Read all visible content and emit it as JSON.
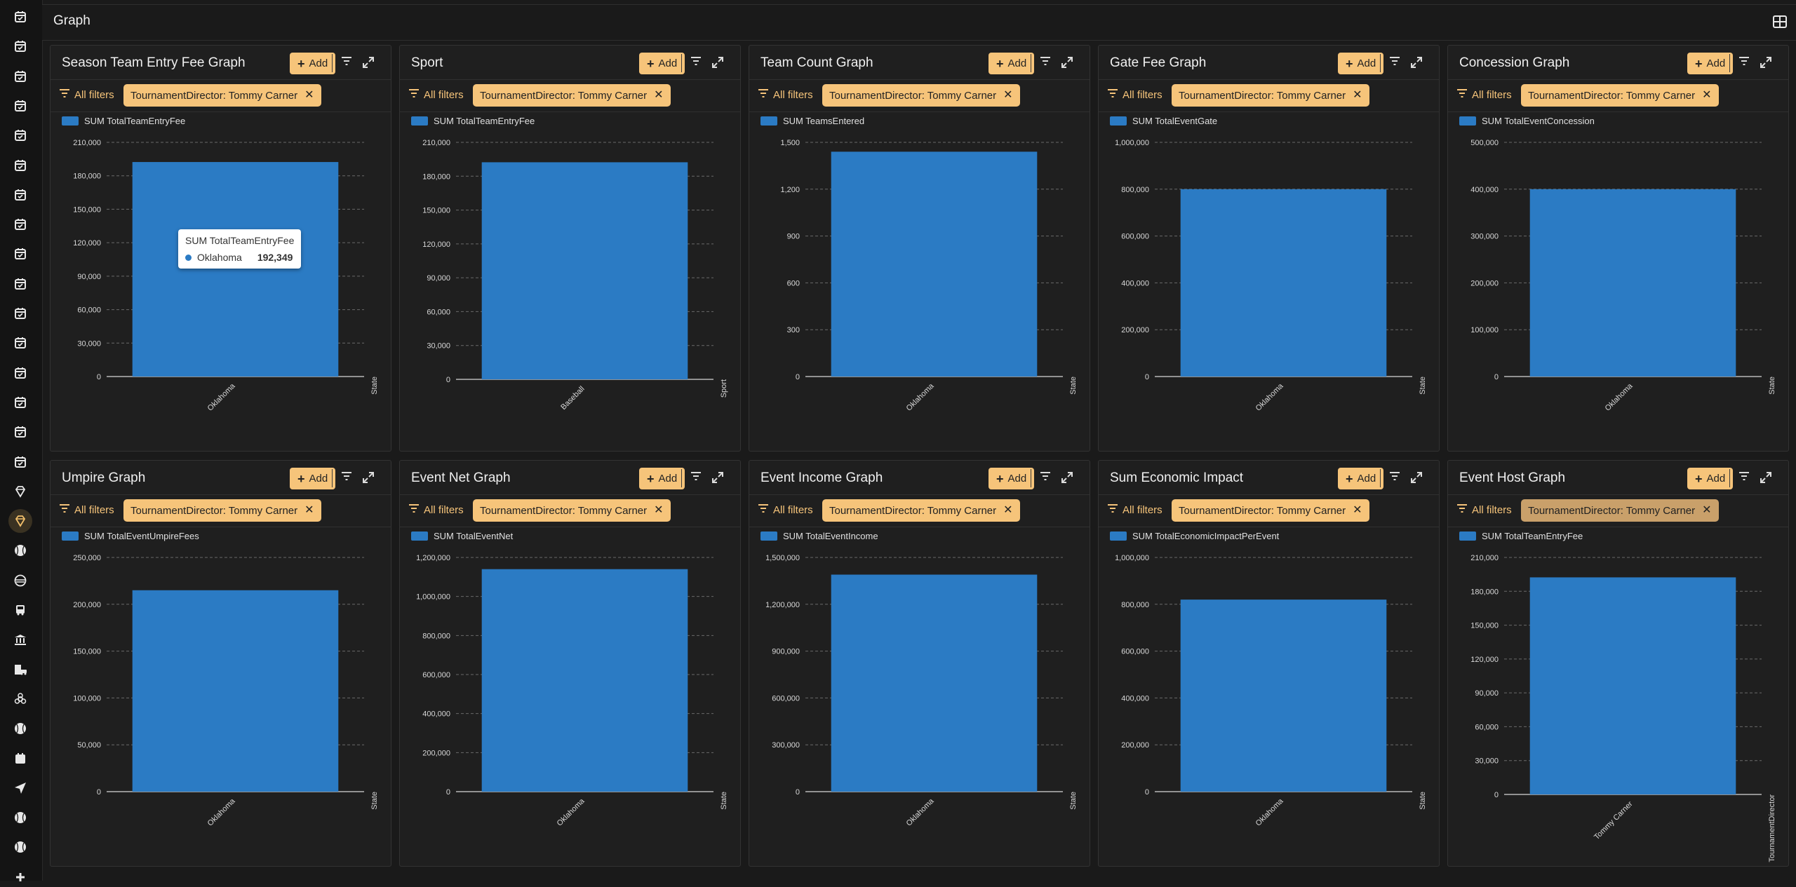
{
  "page": {
    "title": "Graph"
  },
  "colors": {
    "bar": "#2b7bc4",
    "accent": "#f6c47a",
    "background": "#1a1a1a",
    "panel": "#1f1f1f"
  },
  "sidebar": {
    "icons": [
      "calendar-check-icon",
      "calendar-check-icon",
      "calendar-check-icon",
      "calendar-check-icon",
      "calendar-check-icon",
      "calendar-check-icon",
      "calendar-check-icon",
      "calendar-check-icon",
      "calendar-check-icon",
      "calendar-check-icon",
      "calendar-check-icon",
      "calendar-check-icon",
      "calendar-check-icon",
      "calendar-check-icon",
      "calendar-check-icon",
      "calendar-check-icon",
      "diamond-icon",
      "diamond-icon",
      "baseball-icon",
      "mask-icon",
      "bus-icon",
      "bank-icon",
      "building-car-icon",
      "biohazard-icon",
      "baseball-icon",
      "calendar-icon",
      "send-icon",
      "baseball-icon",
      "baseball-icon",
      "plus-icon"
    ],
    "active_index": 17
  },
  "common": {
    "add_label": "Add",
    "all_filters_label": "All filters"
  },
  "panels": [
    {
      "title": "Season Team Entry Fee Graph",
      "filter_chip": "TournamentDirector: Tommy Carner",
      "chart_data": {
        "type": "bar",
        "legend": "SUM TotalTeamEntryFee",
        "categories": [
          "Oklahoma"
        ],
        "values": [
          192349
        ],
        "yticks": [
          "0",
          "30,000",
          "60,000",
          "90,000",
          "120,000",
          "150,000",
          "180,000",
          "210,000"
        ],
        "ylim": [
          0,
          210000
        ],
        "xlabel": "State"
      },
      "tooltip": {
        "title": "SUM TotalTeamEntryFee",
        "label": "Oklahoma",
        "value": "192,349"
      }
    },
    {
      "title": "Sport",
      "filter_chip": "TournamentDirector: Tommy Carner",
      "chart_data": {
        "type": "bar",
        "legend": "SUM TotalTeamEntryFee",
        "categories": [
          "Baseball"
        ],
        "values": [
          192349
        ],
        "yticks": [
          "0",
          "30,000",
          "60,000",
          "90,000",
          "120,000",
          "150,000",
          "180,000",
          "210,000"
        ],
        "ylim": [
          0,
          210000
        ],
        "xlabel": "Sport"
      }
    },
    {
      "title": "Team Count Graph",
      "filter_chip": "TournamentDirector: Tommy Carner",
      "chart_data": {
        "type": "bar",
        "legend": "SUM TeamsEntered",
        "categories": [
          "Oklahoma"
        ],
        "values": [
          1440
        ],
        "yticks": [
          "0",
          "300",
          "600",
          "900",
          "1,200",
          "1,500"
        ],
        "ylim": [
          0,
          1500
        ],
        "xlabel": "State"
      }
    },
    {
      "title": "Gate Fee Graph",
      "filter_chip": "TournamentDirector: Tommy Carner",
      "chart_data": {
        "type": "bar",
        "legend": "SUM TotalEventGate",
        "categories": [
          "Oklahoma"
        ],
        "values": [
          800000
        ],
        "yticks": [
          "0",
          "200,000",
          "400,000",
          "600,000",
          "800,000",
          "1,000,000"
        ],
        "ylim": [
          0,
          1000000
        ],
        "xlabel": "State"
      }
    },
    {
      "title": "Concession Graph",
      "filter_chip": "TournamentDirector: Tommy Carner",
      "chart_data": {
        "type": "bar",
        "legend": "SUM TotalEventConcession",
        "categories": [
          "Oklahoma"
        ],
        "values": [
          400000
        ],
        "yticks": [
          "0",
          "100,000",
          "200,000",
          "300,000",
          "400,000",
          "500,000"
        ],
        "ylim": [
          0,
          500000
        ],
        "xlabel": "State"
      }
    },
    {
      "title": "Umpire Graph",
      "filter_chip": "TournamentDirector: Tommy Carner",
      "chart_data": {
        "type": "bar",
        "legend": "SUM TotalEventUmpireFees",
        "categories": [
          "Oklahoma"
        ],
        "values": [
          215000
        ],
        "yticks": [
          "0",
          "50,000",
          "100,000",
          "150,000",
          "200,000",
          "250,000"
        ],
        "ylim": [
          0,
          250000
        ],
        "xlabel": "State"
      }
    },
    {
      "title": "Event Net Graph",
      "filter_chip": "TournamentDirector: Tommy Carner",
      "chart_data": {
        "type": "bar",
        "legend": "SUM TotalEventNet",
        "categories": [
          "Oklahoma"
        ],
        "values": [
          1140000
        ],
        "yticks": [
          "0",
          "200,000",
          "400,000",
          "600,000",
          "800,000",
          "1,000,000",
          "1,200,000"
        ],
        "ylim": [
          0,
          1200000
        ],
        "xlabel": "State"
      }
    },
    {
      "title": "Event Income Graph",
      "filter_chip": "TournamentDirector: Tommy Carner",
      "chart_data": {
        "type": "bar",
        "legend": "SUM TotalEventIncome",
        "categories": [
          "Oklahoma"
        ],
        "values": [
          1390000
        ],
        "yticks": [
          "0",
          "300,000",
          "600,000",
          "900,000",
          "1,200,000",
          "1,500,000"
        ],
        "ylim": [
          0,
          1500000
        ],
        "xlabel": "State"
      }
    },
    {
      "title": "Sum Economic Impact",
      "filter_chip": "TournamentDirector: Tommy Carner",
      "chart_data": {
        "type": "bar",
        "legend": "SUM TotalEconomicImpactPerEvent",
        "categories": [
          "Oklahoma"
        ],
        "values": [
          820000
        ],
        "yticks": [
          "0",
          "200,000",
          "400,000",
          "600,000",
          "800,000",
          "1,000,000"
        ],
        "ylim": [
          0,
          1000000
        ],
        "xlabel": "State"
      }
    },
    {
      "title": "Event Host Graph",
      "filter_chip": "TournamentDirector: Tommy Carner",
      "chip_dim": true,
      "chart_data": {
        "type": "bar",
        "legend": "SUM TotalTeamEntryFee",
        "categories": [
          "Tommy Carner"
        ],
        "values": [
          192349
        ],
        "yticks": [
          "0",
          "30,000",
          "60,000",
          "90,000",
          "120,000",
          "150,000",
          "180,000",
          "210,000"
        ],
        "ylim": [
          0,
          210000
        ],
        "xlabel": "TournamentDirector"
      }
    }
  ]
}
